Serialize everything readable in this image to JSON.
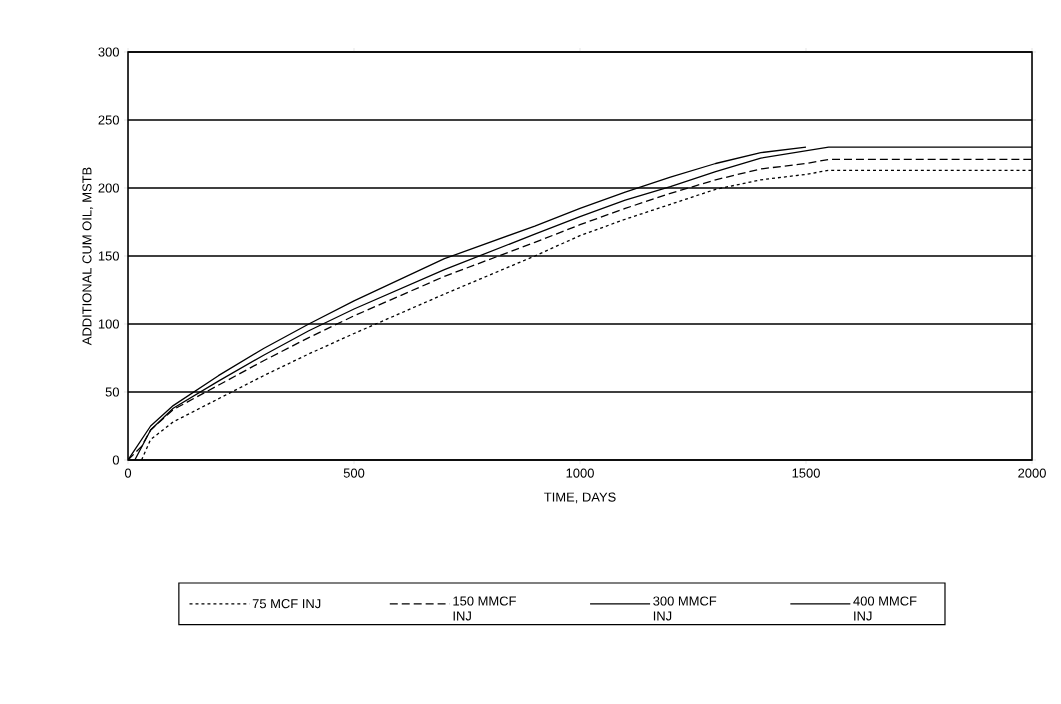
{
  "chart_data": {
    "type": "line",
    "xlabel": "TIME, DAYS",
    "ylabel": "ADDITIONAL CUM OIL, MSTB",
    "xlim": [
      0,
      2000
    ],
    "ylim": [
      0,
      300
    ],
    "xticks": [
      0,
      500,
      1000,
      1500,
      2000
    ],
    "yticks": [
      0,
      50,
      100,
      150,
      200,
      250,
      300
    ],
    "grid": "y",
    "legend": "bottom",
    "marker": "none",
    "series": [
      {
        "name": "75 MCF INJ",
        "color": "#000000",
        "line_style": "dotted",
        "x": [
          30,
          50,
          100,
          200,
          300,
          400,
          500,
          700,
          900,
          1000,
          1100,
          1200,
          1300,
          1400,
          1500,
          1550,
          2000
        ],
        "values": [
          0,
          15,
          28,
          45,
          62,
          78,
          93,
          122,
          150,
          165,
          177,
          188,
          199,
          206,
          210,
          213,
          213
        ]
      },
      {
        "name": "150 MMCF INJ",
        "color": "#000000",
        "line_style": "dashed",
        "x": [
          0,
          30,
          50,
          100,
          200,
          300,
          400,
          500,
          700,
          900,
          1000,
          1100,
          1200,
          1300,
          1400,
          1500,
          1550,
          2000
        ],
        "values": [
          0,
          10,
          22,
          37,
          55,
          73,
          90,
          106,
          135,
          160,
          173,
          185,
          196,
          206,
          214,
          218,
          221,
          221
        ]
      },
      {
        "name": "300 MMCF INJ",
        "color": "#000000",
        "line_style": "solid",
        "x": [
          15,
          50,
          100,
          200,
          300,
          400,
          500,
          700,
          900,
          1000,
          1100,
          1200,
          1300,
          1400,
          1550,
          2000
        ],
        "values": [
          0,
          22,
          38,
          58,
          77,
          95,
          111,
          140,
          166,
          179,
          191,
          201,
          212,
          222,
          230,
          230
        ]
      },
      {
        "name": "400 MMCF INJ",
        "color": "#000000",
        "line_style": "solid",
        "x": [
          0,
          50,
          100,
          200,
          300,
          400,
          500,
          700,
          900,
          1000,
          1100,
          1200,
          1300,
          1400,
          1500
        ],
        "values": [
          0,
          25,
          40,
          62,
          82,
          100,
          117,
          148,
          172,
          185,
          197,
          208,
          218,
          226,
          230
        ]
      }
    ]
  }
}
